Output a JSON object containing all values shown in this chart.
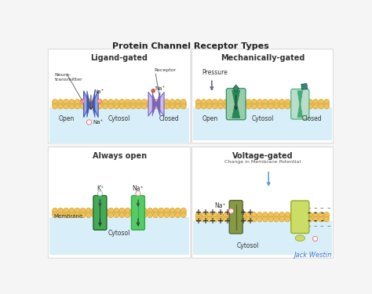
{
  "title": "Protein Channel Receptor Types",
  "bg_color": "#f5f5f5",
  "lipid_circle_color": "#f0c060",
  "lipid_circle_outline": "#c8a020",
  "lipid_bar_color": "#e8d060",
  "cytosol_bg": "#d8eef8",
  "panels": {
    "ligand_gated": {
      "title": "Ligand-gated",
      "open_label": "Open",
      "closed_label": "Closed",
      "cytosol_label": "Cytosol",
      "channel_open_dark": "#4455bb",
      "channel_open_light": "#99aadd",
      "channel_closed_dark": "#7766bb",
      "channel_closed_light": "#ccbbee",
      "ion_label": "Na⁺",
      "ion_color": "#ee7777",
      "nt_dot_color": "#ee9999",
      "annotation1": "Neuro-\ntransmitter",
      "annotation2": "Receptor"
    },
    "mechanically_gated": {
      "title": "Mechanically-gated",
      "open_label": "Open",
      "closed_label": "Closed",
      "cytosol_label": "Cytosol",
      "channel_open_dark": "#228855",
      "channel_open_light": "#99ccaa",
      "channel_closed_dark": "#44aa77",
      "channel_closed_light": "#bbddcc",
      "pressure_label": "Pressure",
      "diamond_color": "#338866",
      "arrow_color": "#5588aa"
    },
    "always_open": {
      "title": "Always open",
      "cytosol_label": "Cytosol",
      "membrane_label": "Membrane",
      "channel1_dark": "#226633",
      "channel1_light": "#44aa55",
      "channel2_dark": "#33aa44",
      "channel2_light": "#55cc66",
      "ion1_label": "K⁺",
      "ion1_color": "#99bbbb",
      "ion2_label": "Na⁺",
      "ion2_color": "#ee8888"
    },
    "voltage_gated": {
      "title": "Voltage-gated",
      "subtitle": "Change in Membrane Potential",
      "cytosol_label": "Cytosol",
      "channel1_dark": "#556633",
      "channel1_light": "#889944",
      "channel2_dark": "#99aa33",
      "channel2_light": "#ccdd66",
      "ion_label": "Na⁺",
      "ion_color": "#ee7777",
      "plus_color": "#333333",
      "minus_color": "#333333",
      "arrow_color": "#5599cc"
    }
  },
  "signature": "Jack Westin",
  "signature_color": "#4477cc"
}
